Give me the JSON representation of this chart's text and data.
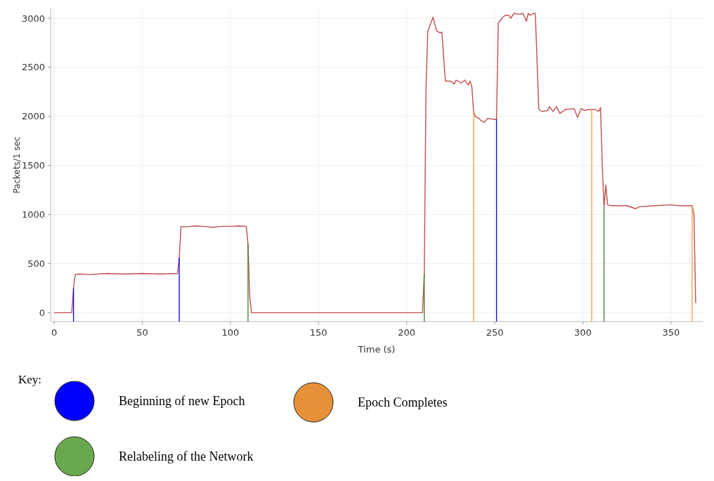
{
  "chart_data": {
    "type": "line",
    "xlabel": "Time (s)",
    "ylabel": "Packets/1 sec",
    "legend_title": "Key:",
    "grid": true,
    "marker": "none",
    "line_style": "solid",
    "xlim": [
      -2,
      368
    ],
    "ylim": [
      -90,
      3100
    ],
    "xticks": [
      0,
      50,
      100,
      150,
      200,
      250,
      300,
      350
    ],
    "yticks": [
      0,
      500,
      1000,
      1500,
      2000,
      2500,
      3000
    ],
    "series": [
      {
        "color": "#c0504d",
        "x": [
          0,
          10,
          11,
          12,
          14,
          20,
          30,
          40,
          50,
          60,
          70,
          71,
          72,
          75,
          80,
          85,
          90,
          95,
          100,
          105,
          109,
          110,
          111,
          112,
          150,
          209,
          210,
          211,
          212,
          215,
          217,
          219,
          220,
          221,
          222,
          225,
          227,
          228,
          231,
          233,
          235,
          236,
          237,
          238,
          239,
          241,
          242,
          244,
          246,
          250,
          251,
          252,
          254,
          256,
          258,
          259,
          261,
          264,
          266,
          268,
          269,
          270,
          272,
          273,
          275,
          277,
          280,
          281,
          283,
          285,
          287,
          290,
          295,
          297,
          299,
          301,
          303,
          307,
          309,
          310,
          311,
          312,
          313,
          314,
          316,
          320,
          325,
          330,
          332,
          340,
          350,
          355,
          360,
          362,
          363,
          364
        ],
        "values": [
          0,
          0,
          250,
          390,
          395,
          390,
          400,
          395,
          400,
          395,
          400,
          560,
          880,
          875,
          885,
          880,
          870,
          880,
          880,
          885,
          880,
          700,
          150,
          0,
          0,
          0,
          400,
          2300,
          2870,
          3010,
          2870,
          2850,
          2860,
          2600,
          2360,
          2360,
          2330,
          2370,
          2340,
          2370,
          2320,
          2360,
          2300,
          2050,
          2000,
          1980,
          1960,
          1940,
          1980,
          1970,
          1970,
          2950,
          3000,
          3030,
          3030,
          3000,
          3050,
          3040,
          3050,
          2970,
          3050,
          3030,
          3050,
          3050,
          2070,
          2050,
          2060,
          2100,
          2050,
          2100,
          2030,
          2070,
          2080,
          1990,
          2080,
          2060,
          2070,
          2070,
          2050,
          2090,
          1500,
          1080,
          1300,
          1100,
          1090,
          1090,
          1090,
          1060,
          1080,
          1090,
          1100,
          1090,
          1090,
          1090,
          1000,
          100
        ]
      }
    ],
    "annotations": [
      "Beginning of new Epoch",
      "Relabeling of the Network",
      "Epoch Completes"
    ],
    "ref_lines": [
      {
        "axis": "x",
        "value": 11,
        "color": "#0000ff"
      },
      {
        "axis": "x",
        "value": 71,
        "color": "#0000ff"
      },
      {
        "axis": "x",
        "value": 110,
        "color": "#3a7d2c"
      },
      {
        "axis": "x",
        "value": 210,
        "color": "#3a7d2c"
      },
      {
        "axis": "x",
        "value": 238,
        "color": "#f0a040"
      },
      {
        "axis": "x",
        "value": 251,
        "color": "#0000ff"
      },
      {
        "axis": "x",
        "value": 305,
        "color": "#f0a040"
      },
      {
        "axis": "x",
        "value": 312,
        "color": "#3a7d2c"
      },
      {
        "axis": "x",
        "value": 362,
        "color": "#f0a040"
      }
    ]
  }
}
